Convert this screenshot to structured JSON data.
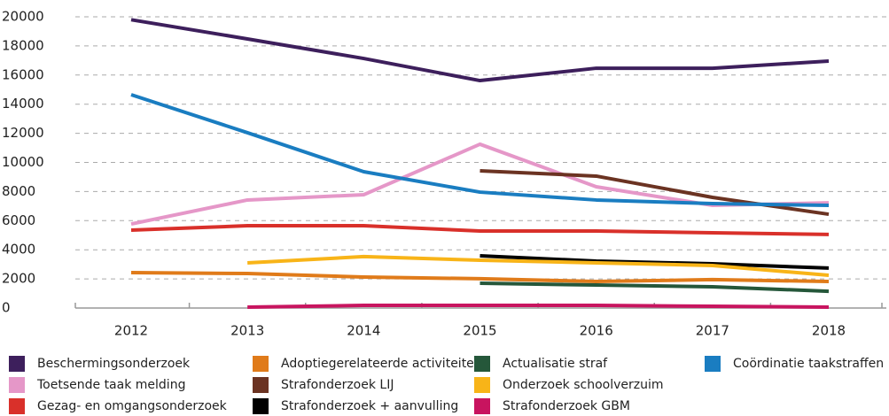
{
  "chart_data": {
    "type": "line",
    "categories": [
      "2012",
      "2013",
      "2014",
      "2015",
      "2016",
      "2017",
      "2018"
    ],
    "series": [
      {
        "name": "Beschermingsonderzoek",
        "color": "#3d1f5c",
        "values": [
          19800,
          18480,
          17140,
          15620,
          16470,
          16470,
          16960
        ]
      },
      {
        "name": "Toetsende taak melding",
        "color": "#e597c8",
        "values": [
          5770,
          7420,
          7780,
          11250,
          8330,
          7050,
          7230
        ]
      },
      {
        "name": "Gezag- en omgangsonderzoek",
        "color": "#d9302a",
        "values": [
          5350,
          5650,
          5650,
          5290,
          5290,
          5170,
          5050
        ]
      },
      {
        "name": "Adoptiegerelateerde activiteiten",
        "color": "#e07b1a",
        "values": [
          2430,
          2370,
          2130,
          2010,
          1820,
          1950,
          1820
        ]
      },
      {
        "name": "Strafonderzoek LIJ",
        "color": "#6b3322",
        "values": [
          null,
          null,
          null,
          9420,
          9060,
          7600,
          6440
        ]
      },
      {
        "name": "Strafonderzoek + aanvulling",
        "color": "#000000",
        "values": [
          null,
          null,
          null,
          3590,
          3220,
          3040,
          2740
        ]
      },
      {
        "name": "Actualisatie straf",
        "color": "#25573a",
        "values": [
          null,
          null,
          null,
          1700,
          1580,
          1460,
          1150
        ]
      },
      {
        "name": "Onderzoek schoolverzuim",
        "color": "#f8b418",
        "values": [
          null,
          3100,
          3530,
          3280,
          3100,
          2920,
          2250
        ]
      },
      {
        "name": "Strafonderzoek GBM",
        "color": "#c8145f",
        "values": [
          null,
          60,
          180,
          180,
          180,
          120,
          60
        ]
      },
      {
        "name": "Coördinatie taakstraffen",
        "color": "#1a7dc1",
        "values": [
          14650,
          12040,
          9360,
          7960,
          7420,
          7170,
          7050
        ]
      }
    ],
    "ylim": [
      0,
      20000
    ],
    "yticks": [
      0,
      2000,
      4000,
      6000,
      8000,
      10000,
      12000,
      14000,
      16000,
      18000,
      20000
    ],
    "grid": true
  }
}
